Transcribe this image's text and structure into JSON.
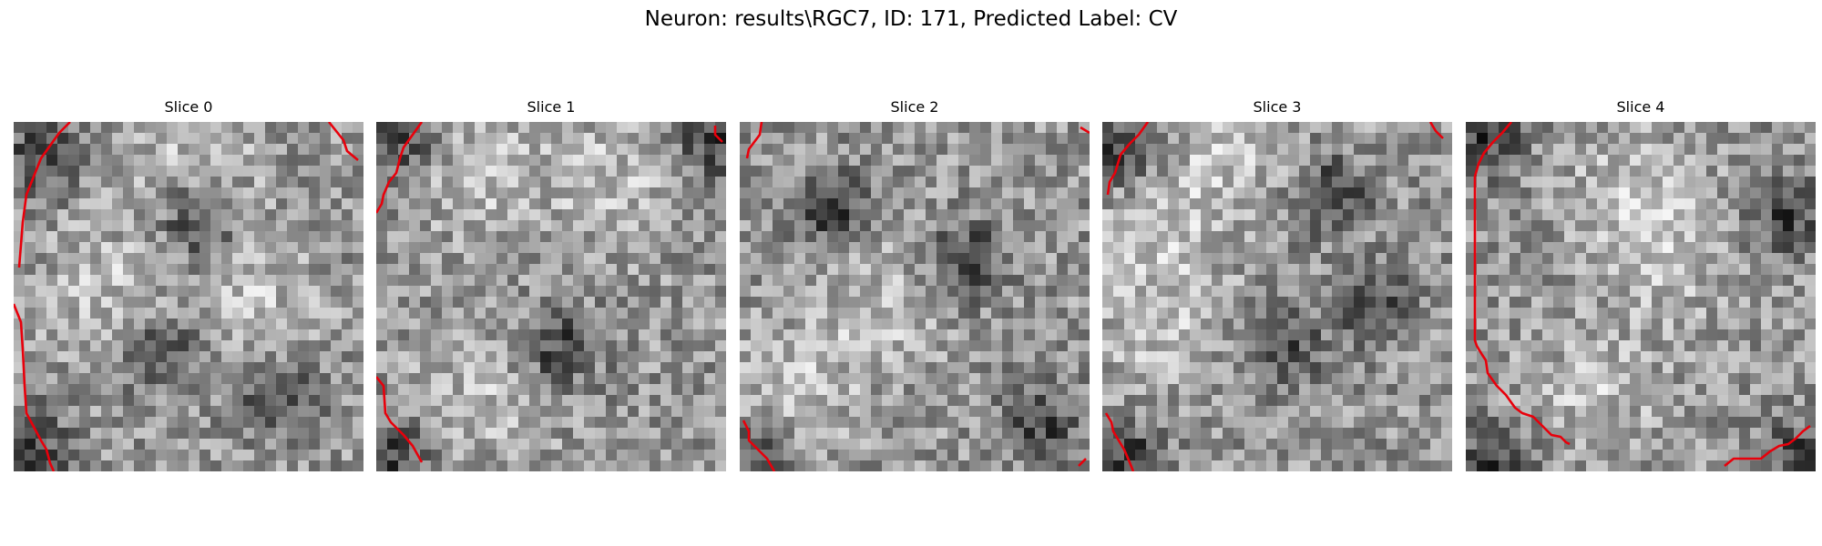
{
  "figure": {
    "title": "Neuron: results\\RGC7, ID: 171, Predicted Label: CV"
  },
  "panels": [
    {
      "title": "Slice 0"
    },
    {
      "title": "Slice 1"
    },
    {
      "title": "Slice 2"
    },
    {
      "title": "Slice 3"
    },
    {
      "title": "Slice 4"
    }
  ],
  "colors": {
    "contour": "#e8000b",
    "background": "#ffffff",
    "colormap": "gray"
  }
}
